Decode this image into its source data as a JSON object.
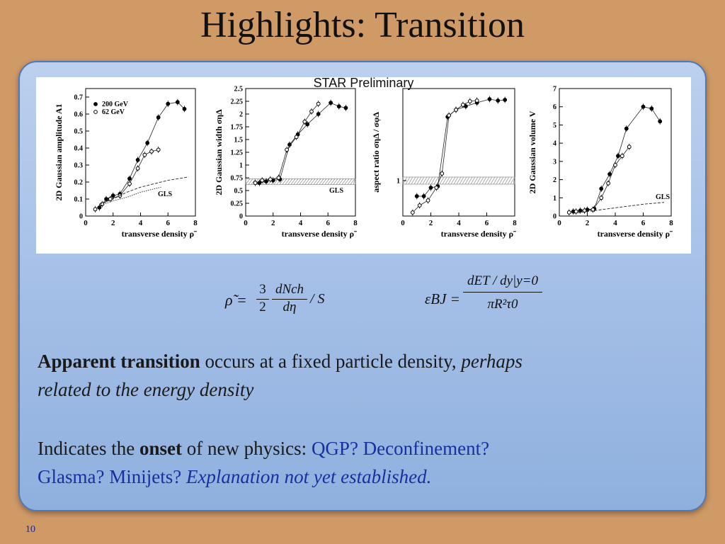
{
  "slide": {
    "title": "Highlights: Transition",
    "number": "10"
  },
  "figure": {
    "overlay_label": "STAR Preliminary"
  },
  "chart_data": [
    {
      "type": "line",
      "ylabel": "2D Gaussian amplitude  A1",
      "xlabel": "transverse density ρ̃",
      "xlim": [
        0,
        8
      ],
      "ylim": [
        0,
        0.75
      ],
      "xticks": [
        "0",
        "2",
        "4",
        "6",
        "8"
      ],
      "yticks": [
        "0",
        "0.1",
        "0.2",
        "0.3",
        "0.4",
        "0.5",
        "0.6",
        "0.7"
      ],
      "legend": [
        "200 GeV",
        "62 GeV"
      ],
      "annotation": "GLS",
      "series": [
        {
          "name": "200 GeV",
          "marker": "filled",
          "x": [
            1.0,
            1.5,
            2.0,
            2.5,
            3.2,
            3.8,
            4.5,
            5.3,
            6.0,
            6.7,
            7.2
          ],
          "y": [
            0.05,
            0.1,
            0.12,
            0.13,
            0.22,
            0.33,
            0.43,
            0.58,
            0.66,
            0.67,
            0.63
          ]
        },
        {
          "name": "62 GeV",
          "marker": "open",
          "x": [
            0.7,
            1.2,
            1.8,
            2.5,
            3.2,
            3.8,
            4.3,
            4.8,
            5.3
          ],
          "y": [
            0.04,
            0.07,
            0.1,
            0.12,
            0.19,
            0.28,
            0.36,
            0.38,
            0.39
          ]
        },
        {
          "name": "",
          "style": "dashed",
          "x": [
            1,
            2,
            3,
            4,
            5,
            6,
            7.5
          ],
          "y": [
            0.07,
            0.1,
            0.14,
            0.17,
            0.19,
            0.21,
            0.23
          ]
        },
        {
          "name": "",
          "style": "dotted",
          "x": [
            1,
            2,
            3,
            4,
            5,
            5.5
          ],
          "y": [
            0.06,
            0.09,
            0.11,
            0.14,
            0.16,
            0.17
          ]
        }
      ]
    },
    {
      "type": "line",
      "ylabel": "2D Gaussian width  σηΔ",
      "xlabel": "transverse density ρ̃",
      "xlim": [
        0,
        8
      ],
      "ylim": [
        0,
        2.5
      ],
      "xticks": [
        "0",
        "2",
        "4",
        "6",
        "8"
      ],
      "yticks": [
        "0",
        "0.25",
        "0.5",
        "0.75",
        "1",
        "1.25",
        "1.5",
        "1.75",
        "2",
        "2.25",
        "2.5"
      ],
      "annotation": "GLS",
      "band": [
        0.62,
        0.73
      ],
      "series": [
        {
          "name": "200 GeV",
          "marker": "filled",
          "x": [
            1.0,
            1.5,
            2.0,
            2.5,
            3.2,
            3.8,
            4.5,
            5.3,
            6.2,
            6.8,
            7.3
          ],
          "y": [
            0.65,
            0.68,
            0.7,
            0.72,
            1.4,
            1.6,
            1.8,
            2.0,
            2.22,
            2.15,
            2.12
          ]
        },
        {
          "name": "62 GeV",
          "marker": "open",
          "x": [
            0.7,
            1.2,
            1.8,
            2.4,
            3.0,
            3.7,
            4.3,
            4.8,
            5.3
          ],
          "y": [
            0.65,
            0.7,
            0.72,
            0.75,
            1.3,
            1.55,
            1.85,
            2.05,
            2.2
          ]
        }
      ]
    },
    {
      "type": "line",
      "ylabel": "aspect ratio  σηΔ / σφΔ",
      "xlabel": "transverse density ρ̃",
      "xlim": [
        0,
        8
      ],
      "ylim": [
        0.5,
        2.3
      ],
      "xticks": [
        "0",
        "2",
        "4",
        "6",
        "8"
      ],
      "yticks": [
        "1"
      ],
      "band": [
        0.95,
        1.05
      ],
      "series": [
        {
          "name": "200 GeV",
          "marker": "filled",
          "x": [
            1.0,
            1.5,
            2.0,
            2.5,
            3.2,
            3.8,
            4.5,
            5.3,
            6.2,
            6.8,
            7.3
          ],
          "y": [
            0.78,
            0.78,
            0.9,
            0.92,
            1.9,
            2.0,
            2.05,
            2.1,
            2.15,
            2.13,
            2.14
          ]
        },
        {
          "name": "62 GeV",
          "marker": "open",
          "x": [
            0.7,
            1.2,
            1.8,
            2.4,
            2.8,
            3.3,
            3.8,
            4.3,
            4.8,
            5.3
          ],
          "y": [
            0.55,
            0.65,
            0.72,
            0.9,
            1.1,
            1.92,
            2.0,
            2.07,
            2.12,
            2.13
          ]
        }
      ]
    },
    {
      "type": "line",
      "ylabel": "2D Gaussian volume  V",
      "xlabel": "transverse density ρ̃",
      "xlim": [
        0,
        8
      ],
      "ylim": [
        0,
        7
      ],
      "xticks": [
        "0",
        "2",
        "4",
        "6",
        "8"
      ],
      "yticks": [
        "0",
        "1",
        "2",
        "3",
        "4",
        "5",
        "6",
        "7"
      ],
      "annotation": "GLS",
      "series": [
        {
          "name": "200 GeV",
          "marker": "filled",
          "x": [
            1.0,
            1.5,
            2.0,
            2.5,
            3.0,
            3.6,
            4.2,
            4.8,
            6.0,
            6.6,
            7.2
          ],
          "y": [
            0.25,
            0.3,
            0.35,
            0.4,
            1.5,
            2.3,
            3.3,
            4.8,
            6.0,
            5.9,
            5.2
          ]
        },
        {
          "name": "62 GeV",
          "marker": "open",
          "x": [
            0.7,
            1.2,
            1.8,
            2.4,
            3.0,
            3.5,
            4.0,
            4.5,
            5.0
          ],
          "y": [
            0.2,
            0.25,
            0.3,
            0.35,
            1.0,
            1.8,
            2.8,
            3.3,
            3.8
          ]
        },
        {
          "name": "",
          "style": "dashed",
          "x": [
            1,
            2,
            3,
            4,
            5,
            6,
            7.5
          ],
          "y": [
            0.15,
            0.25,
            0.35,
            0.45,
            0.55,
            0.65,
            0.75
          ]
        }
      ]
    }
  ],
  "formulas": {
    "rho": {
      "lhs": "ρ̃ =",
      "num_a": "3",
      "den_a": "2",
      "num_b": "dNch",
      "den_b": "dη",
      "tail": "/ S"
    },
    "eps": {
      "lhs": "εBJ =",
      "num": "dET / dy|y=0",
      "den": "πR²τ0"
    }
  },
  "paragraph1": {
    "bold": "Apparent transition",
    "normal": " occurs at a fixed particle density, ",
    "italic1": "perhaps",
    "italic2": "related to the energy density"
  },
  "paragraph2": {
    "normal1": "Indicates the ",
    "bold": "onset",
    "normal2": " of new physics: ",
    "blue1": "QGP? Deconfinement?",
    "blue2": "Glasma? Minijets? ",
    "blue_italic": "Explanation not yet established."
  }
}
